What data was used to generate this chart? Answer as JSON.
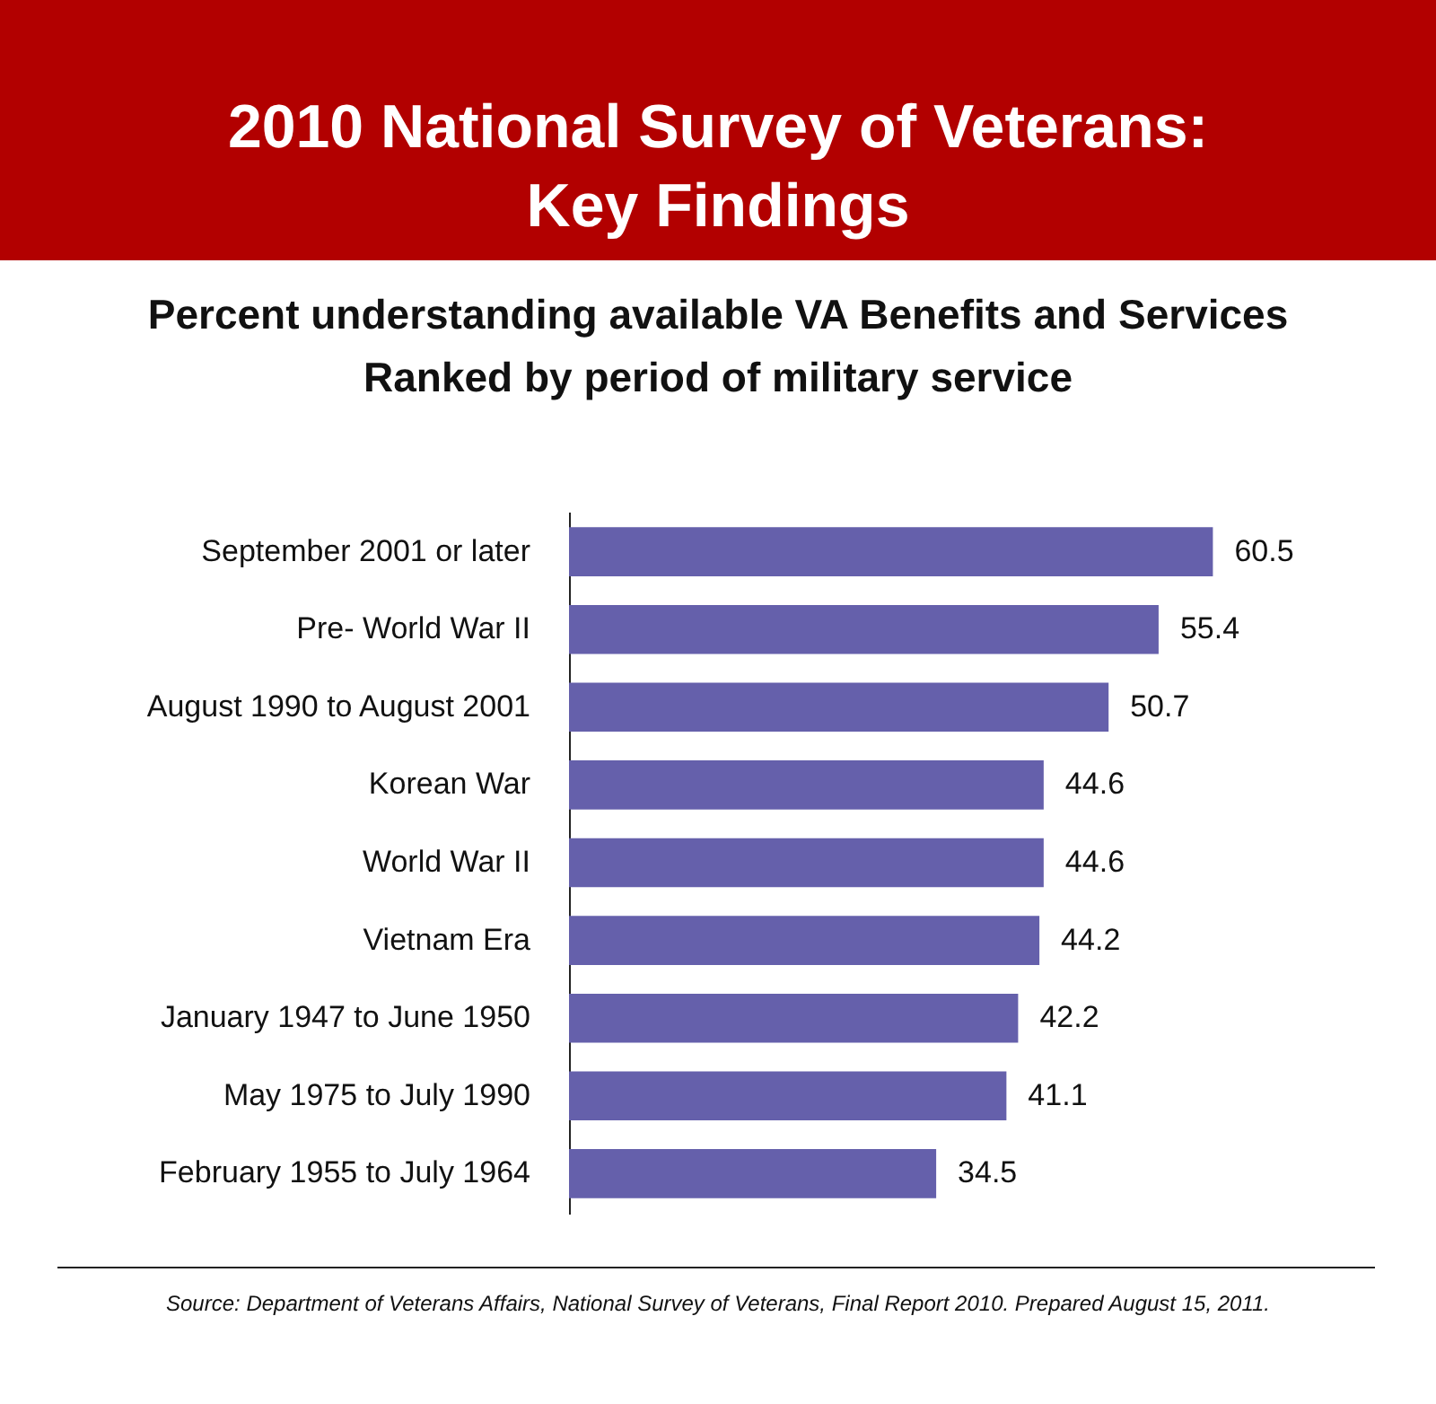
{
  "chart_data": {
    "type": "bar",
    "orientation": "horizontal",
    "title": "2010 National Survey of Veterans:\nKey Findings",
    "subtitle": "Percent understanding available VA Benefits and Services\nRanked by period of military service",
    "categories": [
      "September 2001 or later",
      "Pre- World War II",
      "August 1990 to August 2001",
      "Korean War",
      "World War II",
      "Vietnam Era",
      "January 1947 to June 1950",
      "May 1975 to July 1990",
      "February 1955 to July 1964"
    ],
    "values": [
      60.5,
      55.4,
      50.7,
      44.6,
      44.6,
      44.2,
      42.2,
      41.1,
      34.5
    ],
    "color": "#6560ab",
    "data_labels": true,
    "annotations": [
      "Source: Department of Veterans Affairs, National Survey of Veterans, Final Report 2010.   Prepared August 15, 2011."
    ]
  }
}
